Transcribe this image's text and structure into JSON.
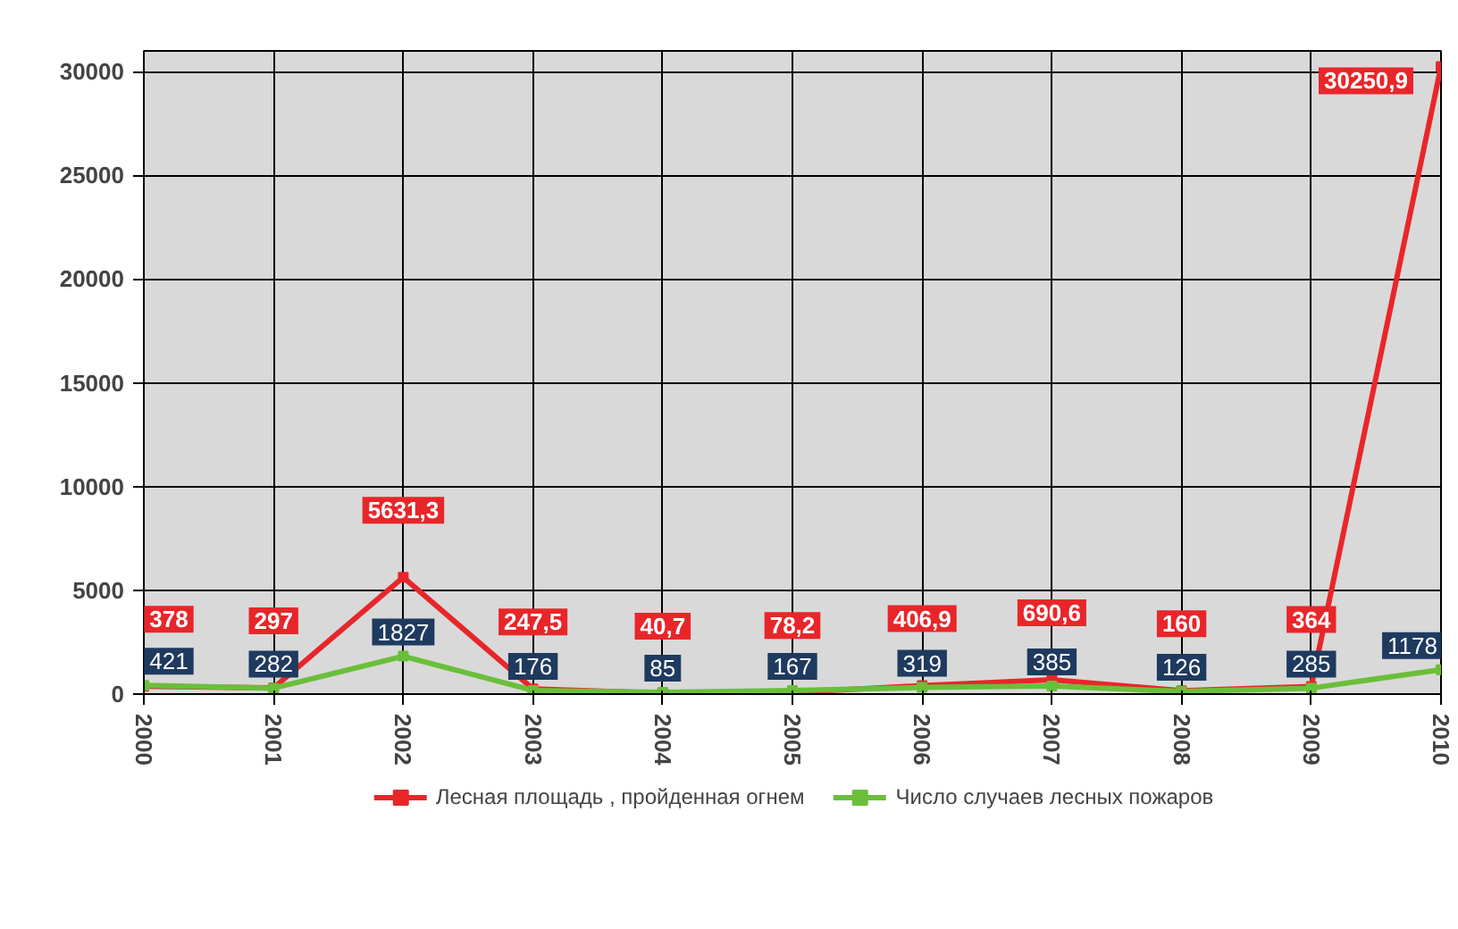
{
  "chart_data": {
    "type": "line",
    "categories": [
      "2000",
      "2001",
      "2002",
      "2003",
      "2004",
      "2005",
      "2006",
      "2007",
      "2008",
      "2009",
      "2010"
    ],
    "series": [
      {
        "name": "Лесная площадь , пройденная огнем",
        "color": "#e8262a",
        "values": [
          378,
          297,
          5631.3,
          247.5,
          40.7,
          78.2,
          406.9,
          690.6,
          160,
          364,
          30250.9
        ],
        "value_labels": [
          "378",
          "297",
          "5631,3",
          "247,5",
          "40,7",
          "78,2",
          "406,9",
          "690,6",
          "160",
          "364",
          "30250,9"
        ]
      },
      {
        "name": "Число случаев лесных пожаров",
        "color": "#6abf3a",
        "values": [
          421,
          282,
          1827,
          176,
          85,
          167,
          319,
          385,
          126,
          285,
          1178
        ],
        "value_labels": [
          "421",
          "282",
          "1827",
          "176",
          "85",
          "167",
          "319",
          "385",
          "126",
          "285",
          "1178"
        ]
      }
    ],
    "ylim": [
      0,
      31000
    ],
    "yticks": [
      0,
      5000,
      10000,
      15000,
      20000,
      25000,
      30000
    ],
    "grid": true,
    "legend": "bottom",
    "marker": "square",
    "line_style": "solid"
  }
}
